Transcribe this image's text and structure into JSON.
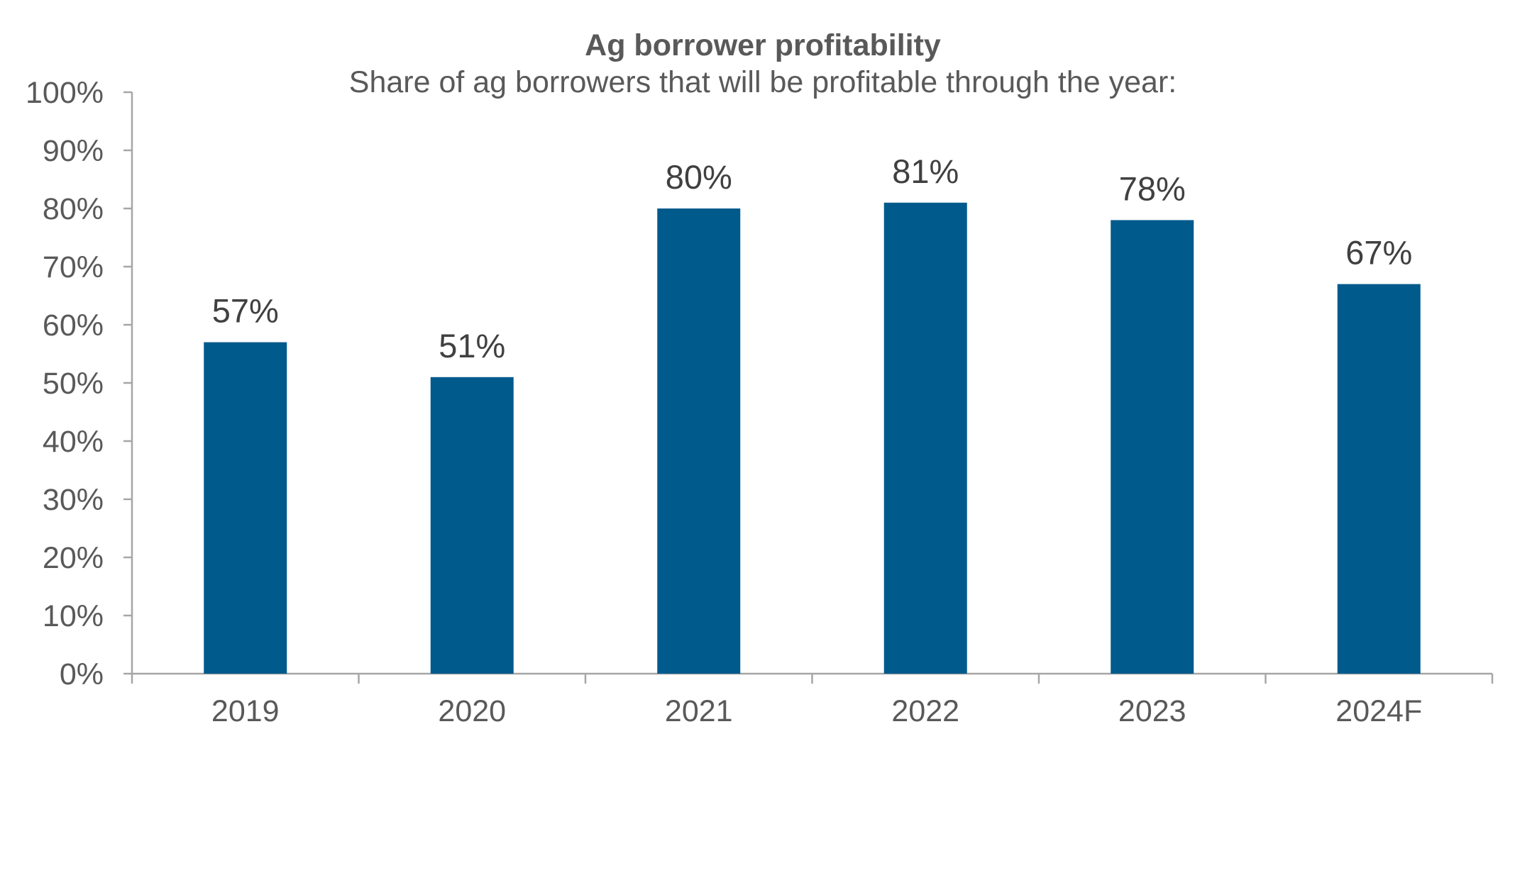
{
  "chart_data": {
    "type": "bar",
    "title": "Ag borrower profitability",
    "subtitle": "Share of ag borrowers that will be profitable through the year:",
    "categories": [
      "2019",
      "2020",
      "2021",
      "2022",
      "2023",
      "2024F"
    ],
    "values": [
      57,
      51,
      80,
      81,
      78,
      67
    ],
    "data_labels": [
      "57%",
      "51%",
      "80%",
      "81%",
      "78%",
      "67%"
    ],
    "y_ticks": [
      0,
      10,
      20,
      30,
      40,
      50,
      60,
      70,
      80,
      90,
      100
    ],
    "y_tick_labels": [
      "0%",
      "10%",
      "20%",
      "30%",
      "40%",
      "50%",
      "60%",
      "70%",
      "80%",
      "90%",
      "100%"
    ],
    "ylim": [
      0,
      100
    ],
    "xlabel": "",
    "ylabel": "",
    "grid": false,
    "bar_color": "#005a8c",
    "legend": "none"
  }
}
